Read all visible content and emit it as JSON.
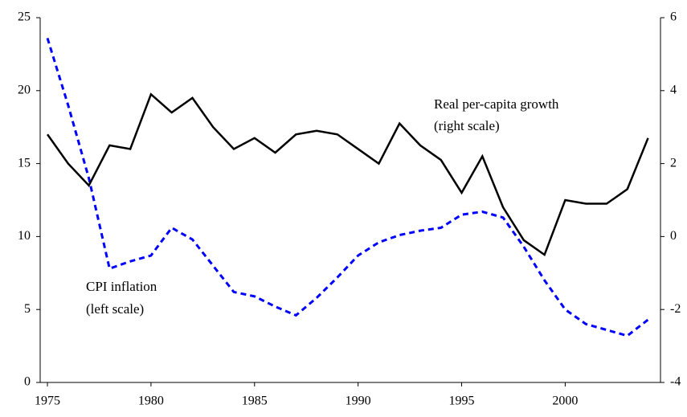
{
  "chart_data": {
    "type": "line",
    "x": [
      1975,
      1976,
      1977,
      1978,
      1979,
      1980,
      1981,
      1982,
      1983,
      1984,
      1985,
      1986,
      1987,
      1988,
      1989,
      1990,
      1991,
      1992,
      1993,
      1994,
      1995,
      1996,
      1997,
      1998,
      1999,
      2000,
      2001,
      2002,
      2003,
      2004
    ],
    "series": [
      {
        "color": "#0000ff",
        "dash": true,
        "axis": "y",
        "values": [
          23.6,
          19.0,
          14.0,
          7.8,
          8.3,
          8.7,
          10.6,
          9.8,
          8.0,
          6.2,
          5.9,
          5.2,
          4.6,
          5.8,
          7.2,
          8.7,
          9.6,
          10.1,
          10.4,
          10.6,
          11.5,
          11.7,
          11.3,
          9.3,
          7.0,
          5.0,
          4.0,
          3.6,
          3.2,
          4.3
        ]
      },
      {
        "color": "#000000",
        "dash": false,
        "axis": "y2",
        "values": [
          2.8,
          2.0,
          1.4,
          2.5,
          2.4,
          3.9,
          3.4,
          3.8,
          3.0,
          2.4,
          2.7,
          2.3,
          2.8,
          2.9,
          2.8,
          2.4,
          2.0,
          3.1,
          2.5,
          2.1,
          1.2,
          2.2,
          0.8,
          -0.1,
          -0.5,
          1.0,
          0.9,
          0.9,
          1.3,
          2.7
        ]
      }
    ],
    "annotations": [
      [
        "Real per-capita growth",
        "(right scale)"
      ],
      [
        "CPI inflation",
        "(left scale)"
      ]
    ],
    "xlim": [
      1974.65,
      2004.6
    ],
    "xticks": [
      1975,
      1980,
      1985,
      1990,
      1995,
      2000
    ],
    "ylim": [
      0,
      25
    ],
    "yticks": [
      0,
      5,
      10,
      15,
      20,
      25
    ],
    "y2lim": [
      -4,
      6
    ],
    "y2ticks": [
      -4,
      -2,
      0,
      2,
      4,
      6
    ],
    "grid": false
  }
}
